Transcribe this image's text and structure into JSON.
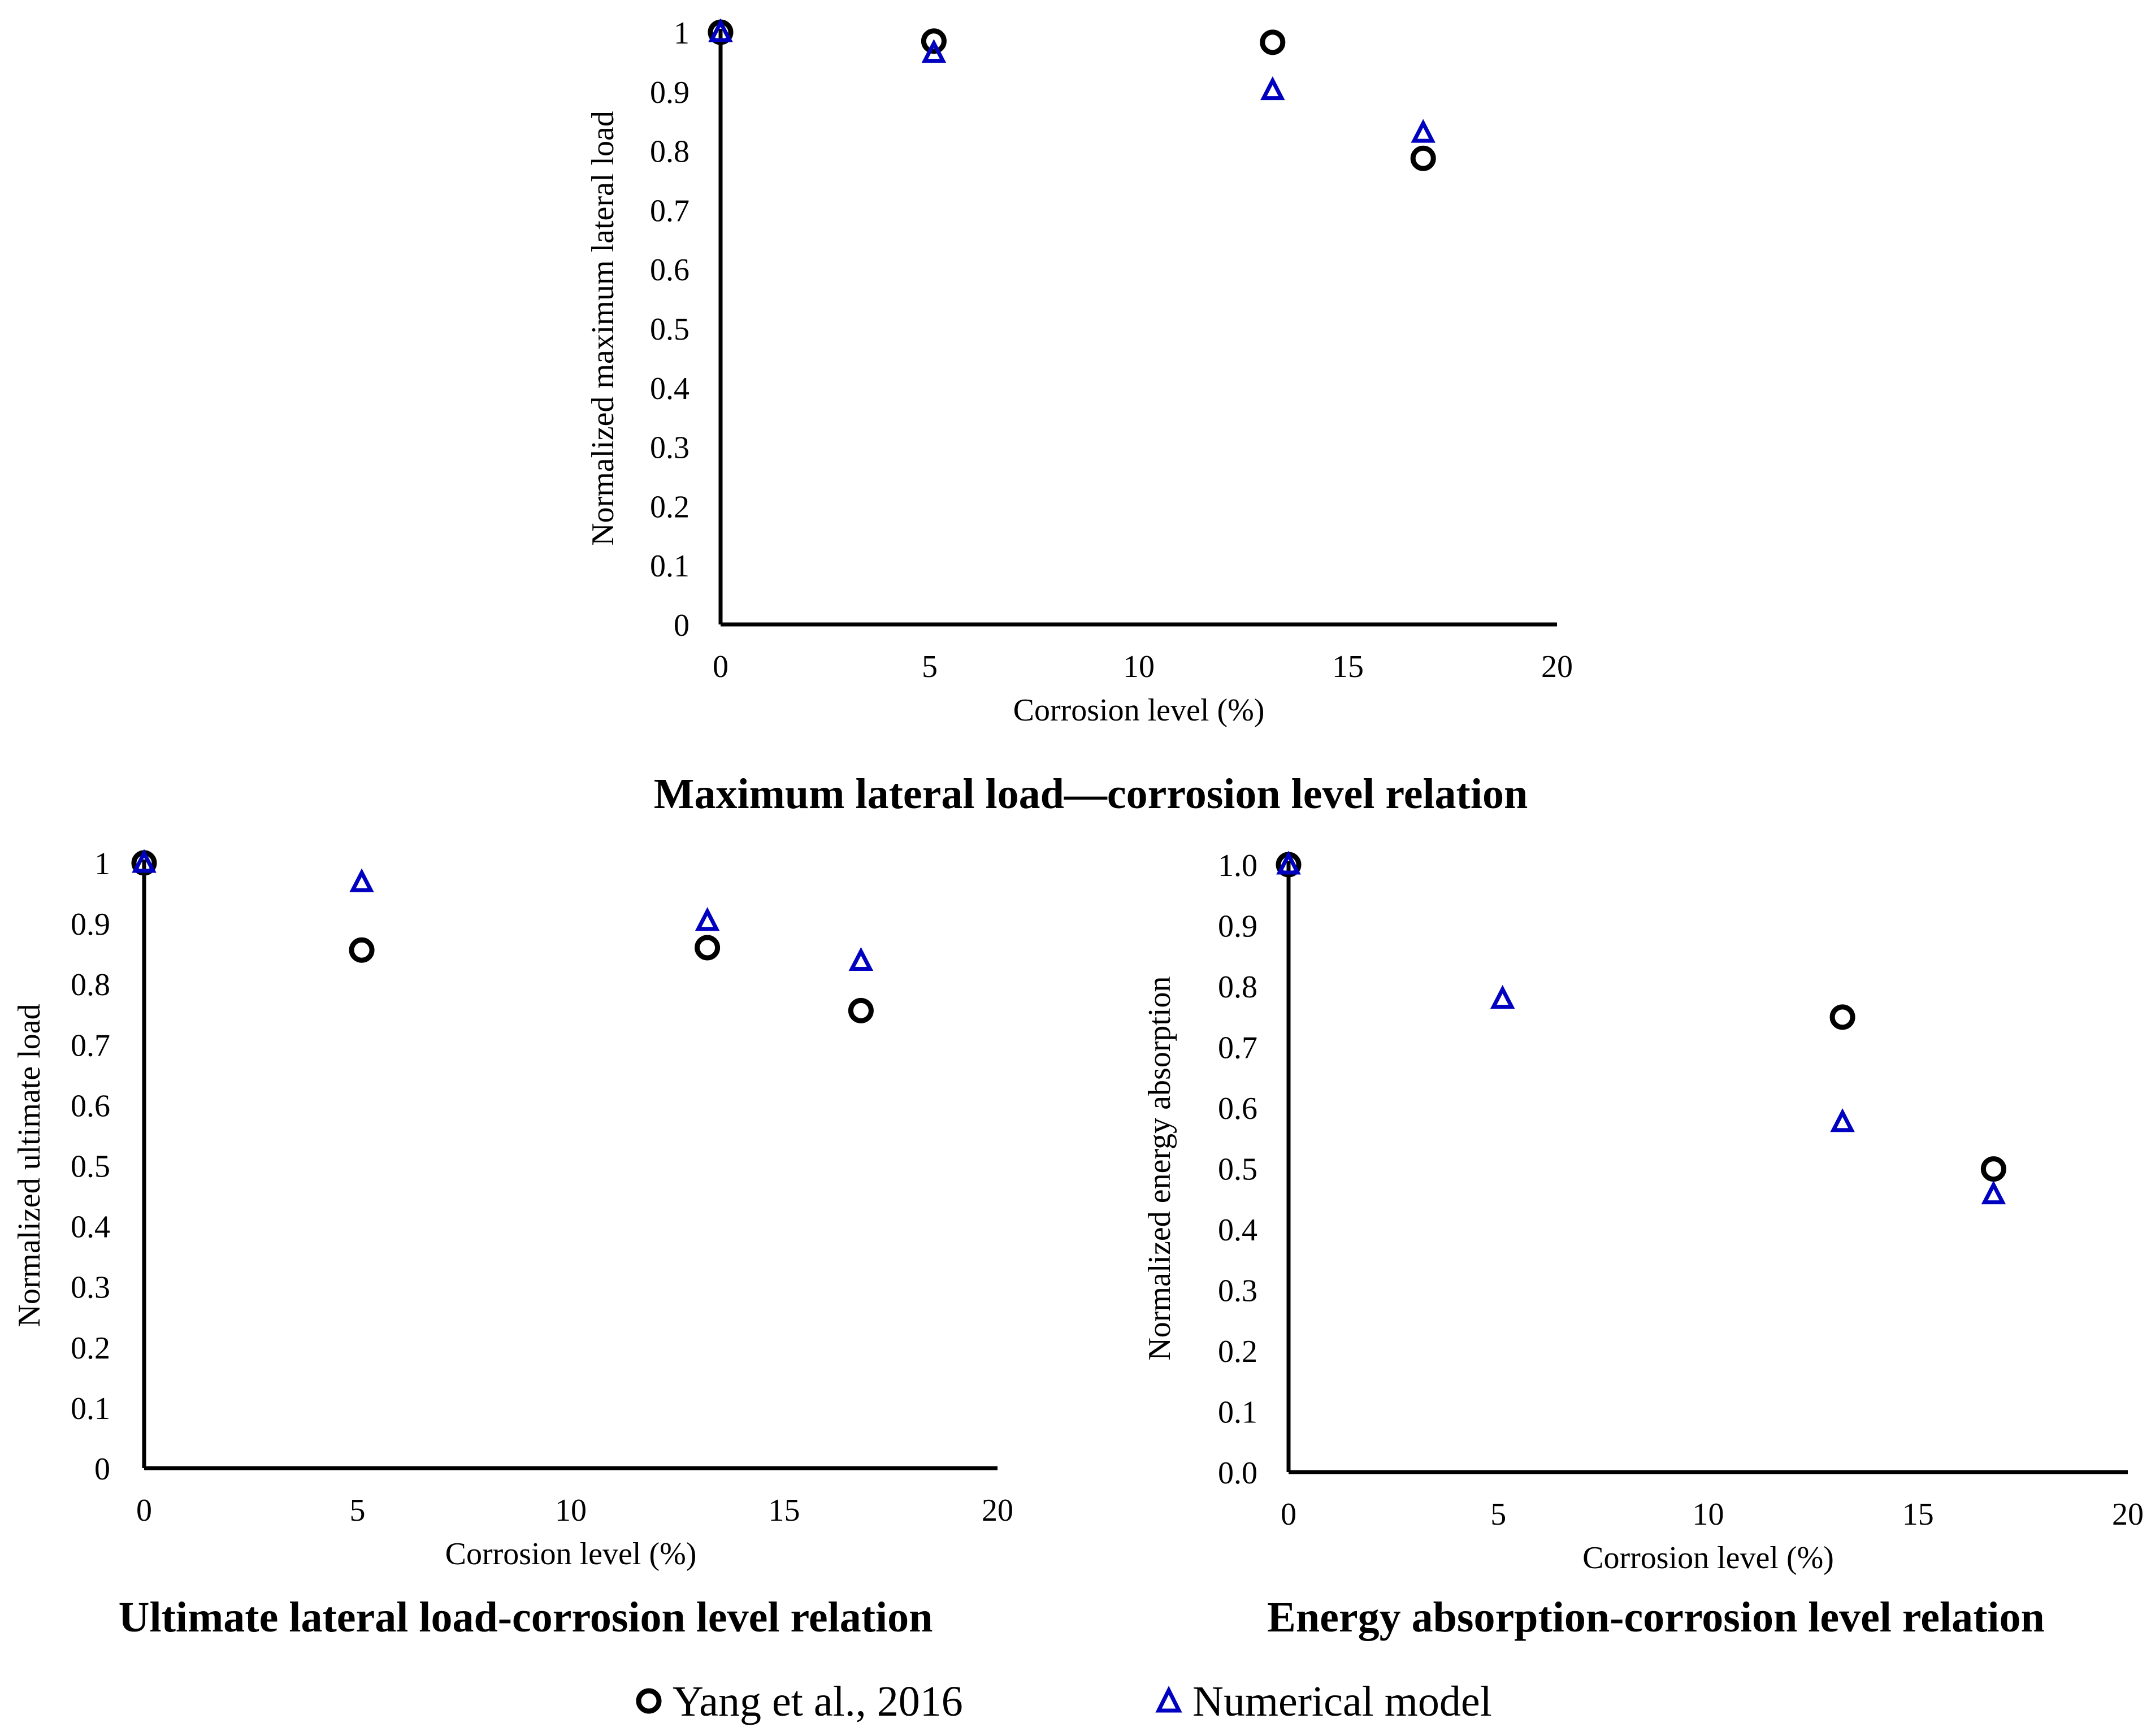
{
  "colors": {
    "experimental": "#000000",
    "numerical": "#0000c0",
    "axis": "#000000"
  },
  "legend": {
    "items": [
      {
        "label": "Yang et al., 2016",
        "icon": "circle-marker-icon"
      },
      {
        "label": "Numerical model",
        "icon": "triangle-marker-icon"
      }
    ]
  },
  "chart_data": [
    {
      "type": "scatter",
      "caption": "Maximum lateral load—corrosion level relation",
      "xlabel": "Corrosion level (%)",
      "ylabel": "Normalized maximum lateral load",
      "xlim": [
        0,
        20
      ],
      "ylim": [
        0,
        1
      ],
      "xticks": [
        0,
        5,
        10,
        15,
        20
      ],
      "xtick_labels": [
        "0",
        "5",
        "10",
        "15",
        "20"
      ],
      "yticks": [
        0,
        0.1,
        0.2,
        0.3,
        0.4,
        0.5,
        0.6,
        0.7,
        0.8,
        0.9,
        1
      ],
      "ytick_labels": [
        "0",
        "0.1",
        "0.2",
        "0.3",
        "0.4",
        "0.5",
        "0.6",
        "0.7",
        "0.8",
        "0.9",
        "1"
      ],
      "series": [
        {
          "name": "Yang et al., 2016",
          "marker": "circle",
          "x": [
            0,
            5.1,
            13.2,
            16.8
          ],
          "y": [
            1.0,
            0.985,
            0.983,
            0.787
          ]
        },
        {
          "name": "Numerical model",
          "marker": "triangle",
          "x": [
            0,
            5.1,
            13.2,
            16.8
          ],
          "y": [
            1.0,
            0.965,
            0.902,
            0.83
          ]
        }
      ]
    },
    {
      "type": "scatter",
      "caption": "Ultimate lateral load-corrosion level relation",
      "xlabel": "Corrosion level (%)",
      "ylabel": "Normalized ultimate load",
      "xlim": [
        0,
        20
      ],
      "ylim": [
        0,
        1
      ],
      "xticks": [
        0,
        5,
        10,
        15,
        20
      ],
      "xtick_labels": [
        "0",
        "5",
        "10",
        "15",
        "20"
      ],
      "yticks": [
        0,
        0.1,
        0.2,
        0.3,
        0.4,
        0.5,
        0.6,
        0.7,
        0.8,
        0.9,
        1
      ],
      "ytick_labels": [
        "0",
        "0.1",
        "0.2",
        "0.3",
        "0.4",
        "0.5",
        "0.6",
        "0.7",
        "0.8",
        "0.9",
        "1"
      ],
      "series": [
        {
          "name": "Yang et al., 2016",
          "marker": "circle",
          "x": [
            0,
            5.1,
            13.2,
            16.8
          ],
          "y": [
            1.0,
            0.856,
            0.86,
            0.756
          ]
        },
        {
          "name": "Numerical model",
          "marker": "triangle",
          "x": [
            0,
            5.1,
            13.2,
            16.8
          ],
          "y": [
            1.0,
            0.968,
            0.904,
            0.838
          ]
        }
      ]
    },
    {
      "type": "scatter",
      "caption": "Energy absorption-corrosion level relation",
      "xlabel": "Corrosion level (%)",
      "ylabel": "Normalized energy absorption",
      "xlim": [
        0,
        20
      ],
      "ylim": [
        0,
        1
      ],
      "xticks": [
        0,
        5,
        10,
        15,
        20
      ],
      "xtick_labels": [
        "0",
        "5",
        "10",
        "15",
        "20"
      ],
      "yticks": [
        0,
        0.1,
        0.2,
        0.3,
        0.4,
        0.5,
        0.6,
        0.7,
        0.8,
        0.9,
        1
      ],
      "ytick_labels": [
        "0.0",
        "0.1",
        "0.2",
        "0.3",
        "0.4",
        "0.5",
        "0.6",
        "0.7",
        "0.8",
        "0.9",
        "1.0"
      ],
      "series": [
        {
          "name": "Yang et al., 2016",
          "marker": "circle",
          "x": [
            0,
            13.2,
            16.8
          ],
          "y": [
            1.0,
            0.749,
            0.499
          ]
        },
        {
          "name": "Numerical model",
          "marker": "triangle",
          "x": [
            0,
            5.1,
            13.2,
            16.8
          ],
          "y": [
            1.0,
            0.779,
            0.576,
            0.457
          ]
        }
      ]
    }
  ]
}
